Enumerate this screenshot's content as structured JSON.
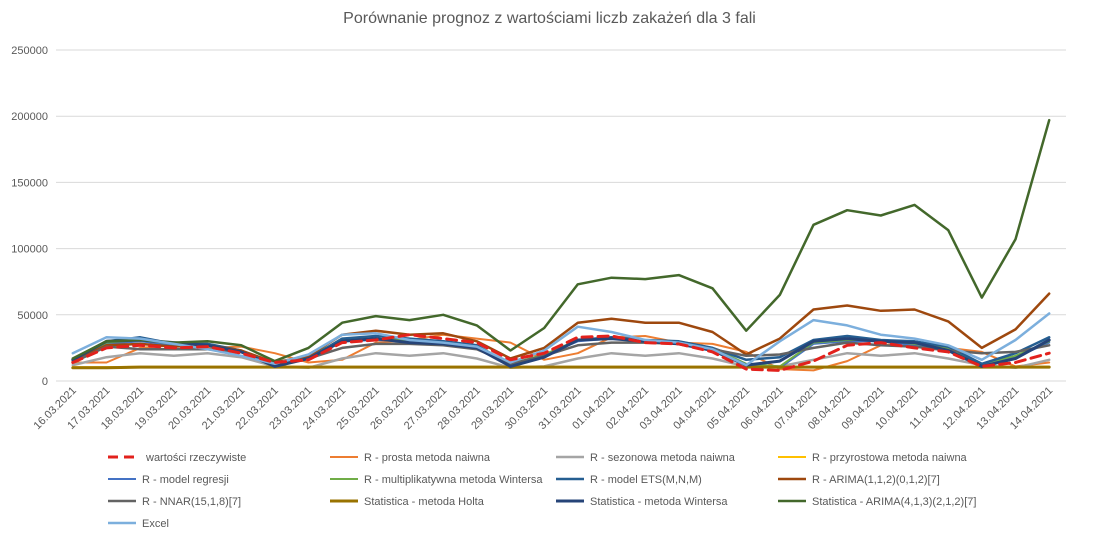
{
  "chart_data": {
    "type": "line",
    "title": "Porównanie prognoz z wartościami liczb zakażeń dla 3 fali",
    "xlabel": "",
    "ylabel": "",
    "ylim": [
      0,
      250000
    ],
    "yticks": [
      0,
      50000,
      100000,
      150000,
      200000,
      250000
    ],
    "ytick_labels": [
      "0",
      "50000",
      "100000",
      "150000",
      "200000",
      "250000"
    ],
    "grid": true,
    "legend_position": "bottom",
    "categories": [
      "16.03.2021",
      "17.03.2021",
      "18.03.2021",
      "19.03.2021",
      "20.03.2021",
      "21.03.2021",
      "22.03.2021",
      "23.03.2021",
      "24.03.2021",
      "25.03.2021",
      "26.03.2021",
      "27.03.2021",
      "28.03.2021",
      "29.03.2021",
      "30.03.2021",
      "31.03.2021",
      "01.04.2021",
      "02.04.2021",
      "03.04.2021",
      "04.04.2021",
      "05.04.2021",
      "06.04.2021",
      "07.04.2021",
      "08.04.2021",
      "09.04.2021",
      "10.04.2021",
      "11.04.2021",
      "12.04.2021",
      "13.04.2021",
      "14.04.2021"
    ],
    "series": [
      {
        "name": "wartości rzeczywiste",
        "color": "#e2211c",
        "dash": "10,6",
        "width": 3,
        "values": [
          14000,
          25000,
          27000,
          25000,
          26000,
          21000,
          14000,
          16000,
          29000,
          31000,
          35000,
          32000,
          29000,
          16000,
          21000,
          33000,
          34000,
          29000,
          28000,
          22000,
          9000,
          8000,
          15000,
          27000,
          29000,
          25000,
          22000,
          11000,
          14000,
          21000
        ]
      },
      {
        "name": "R - prosta metoda naiwna",
        "color": "#ed7d31",
        "dash": "",
        "width": 2,
        "values": [
          14000,
          14000,
          25000,
          27000,
          25000,
          26000,
          21000,
          14000,
          16000,
          29000,
          31000,
          35000,
          32000,
          29000,
          16000,
          21000,
          33000,
          34000,
          29000,
          28000,
          22000,
          9000,
          8000,
          15000,
          27000,
          29000,
          25000,
          22000,
          11000,
          14000
        ]
      },
      {
        "name": "R - sezonowa metoda naiwna",
        "color": "#a5a5a5",
        "dash": "",
        "width": 2.5,
        "values": [
          12000,
          18000,
          21000,
          19000,
          21000,
          18000,
          11000,
          10000,
          17000,
          21000,
          19000,
          21000,
          17000,
          10000,
          11000,
          17000,
          21000,
          19000,
          21000,
          17000,
          11000,
          11000,
          16000,
          21000,
          19000,
          21000,
          17000,
          12000,
          10000,
          16000
        ]
      },
      {
        "name": "R - przyrostowa metoda naiwna",
        "color": "#ffc000",
        "dash": "",
        "width": 2,
        "values": [
          10500,
          10500,
          10800,
          10800,
          10800,
          10800,
          10800,
          10800,
          10800,
          10800,
          10800,
          10800,
          10800,
          10800,
          10800,
          10800,
          10800,
          10800,
          10800,
          10800,
          10800,
          10800,
          10800,
          10800,
          10800,
          10800,
          10800,
          10800,
          10800,
          10800
        ]
      },
      {
        "name": "R - model regresji",
        "color": "#4472c4",
        "dash": "",
        "width": 2,
        "values": [
          15000,
          28000,
          30000,
          27000,
          27000,
          22000,
          12000,
          18000,
          30000,
          31000,
          30000,
          29000,
          26000,
          12000,
          19000,
          30000,
          32000,
          30000,
          29000,
          24000,
          12000,
          10000,
          28000,
          30000,
          30000,
          27000,
          24000,
          12000,
          18000,
          29000
        ]
      },
      {
        "name": "R - multiplikatywna metoda Wintersa",
        "color": "#70ad47",
        "dash": "",
        "width": 2,
        "values": [
          15000,
          29000,
          31000,
          28000,
          28000,
          23000,
          13000,
          19000,
          31000,
          32000,
          31000,
          30000,
          27000,
          13000,
          20000,
          31000,
          33000,
          31000,
          30000,
          25000,
          13000,
          11000,
          29000,
          31000,
          31000,
          28000,
          25000,
          13000,
          19000,
          30000
        ]
      },
      {
        "name": "R - model ETS(M,N,M)",
        "color": "#255e91",
        "dash": "",
        "width": 2.5,
        "values": [
          16000,
          30000,
          33000,
          28000,
          28000,
          23000,
          12000,
          17000,
          32000,
          34000,
          32000,
          30000,
          27000,
          12000,
          18000,
          31000,
          33000,
          31000,
          30000,
          25000,
          16000,
          18000,
          31000,
          34000,
          31000,
          30000,
          26000,
          13000,
          21000,
          33000
        ]
      },
      {
        "name": "R - ARIMA(1,1,2)(0,1,2)[7]",
        "color": "#9e480e",
        "dash": "",
        "width": 2.5,
        "values": [
          15000,
          27000,
          28000,
          26000,
          27000,
          23000,
          14000,
          19000,
          35000,
          38000,
          35000,
          36000,
          30000,
          17000,
          25000,
          44000,
          47000,
          44000,
          44000,
          37000,
          20000,
          32000,
          54000,
          57000,
          53000,
          54000,
          45000,
          25000,
          39000,
          66000
        ]
      },
      {
        "name": "R - NNAR(15,1,8)[7]",
        "color": "#636363",
        "dash": "",
        "width": 2.5,
        "values": [
          14000,
          26000,
          24000,
          24000,
          24000,
          22000,
          13000,
          17000,
          25000,
          28000,
          28000,
          27000,
          24000,
          13000,
          19000,
          27000,
          29000,
          29000,
          28000,
          24000,
          19000,
          20000,
          25000,
          29000,
          27000,
          26000,
          23000,
          21000,
          22000,
          27000
        ]
      },
      {
        "name": "Statistica - metoda Holta",
        "color": "#997300",
        "dash": "",
        "width": 3,
        "values": [
          10000,
          10000,
          10500,
          10500,
          10500,
          10500,
          10500,
          10500,
          10500,
          10500,
          10500,
          10500,
          10500,
          10500,
          10500,
          10500,
          10500,
          10500,
          10500,
          10500,
          10500,
          10500,
          10500,
          10500,
          10500,
          10500,
          10500,
          10500,
          10500,
          10500
        ]
      },
      {
        "name": "Statistica - metoda Wintersa",
        "color": "#264478",
        "dash": "",
        "width": 3,
        "values": [
          16000,
          30000,
          31000,
          29000,
          27000,
          22000,
          11000,
          17000,
          30000,
          32000,
          29000,
          28000,
          25000,
          11000,
          18000,
          31000,
          32000,
          30000,
          28000,
          23000,
          12000,
          15000,
          30000,
          32000,
          30000,
          29000,
          23000,
          11000,
          17000,
          31000
        ]
      },
      {
        "name": "Statistica - ARIMA(4,1,3)(2,1,2)[7]",
        "color": "#43682b",
        "dash": "",
        "width": 2.5,
        "values": [
          17000,
          30000,
          31000,
          29000,
          30000,
          27000,
          15000,
          25000,
          44000,
          49000,
          46000,
          50000,
          42000,
          23000,
          40000,
          73000,
          78000,
          77000,
          80000,
          70000,
          38000,
          65000,
          118000,
          129000,
          125000,
          133000,
          114000,
          63000,
          107000,
          197000
        ]
      },
      {
        "name": "Excel",
        "color": "#7cafdd",
        "dash": "",
        "width": 2.5,
        "values": [
          21000,
          33000,
          32000,
          28000,
          24000,
          19000,
          13000,
          20000,
          35000,
          36000,
          31000,
          29000,
          26000,
          14000,
          23000,
          41000,
          37000,
          31000,
          29000,
          24000,
          12000,
          30000,
          46000,
          42000,
          35000,
          32000,
          27000,
          16000,
          31000,
          51000
        ]
      }
    ]
  }
}
